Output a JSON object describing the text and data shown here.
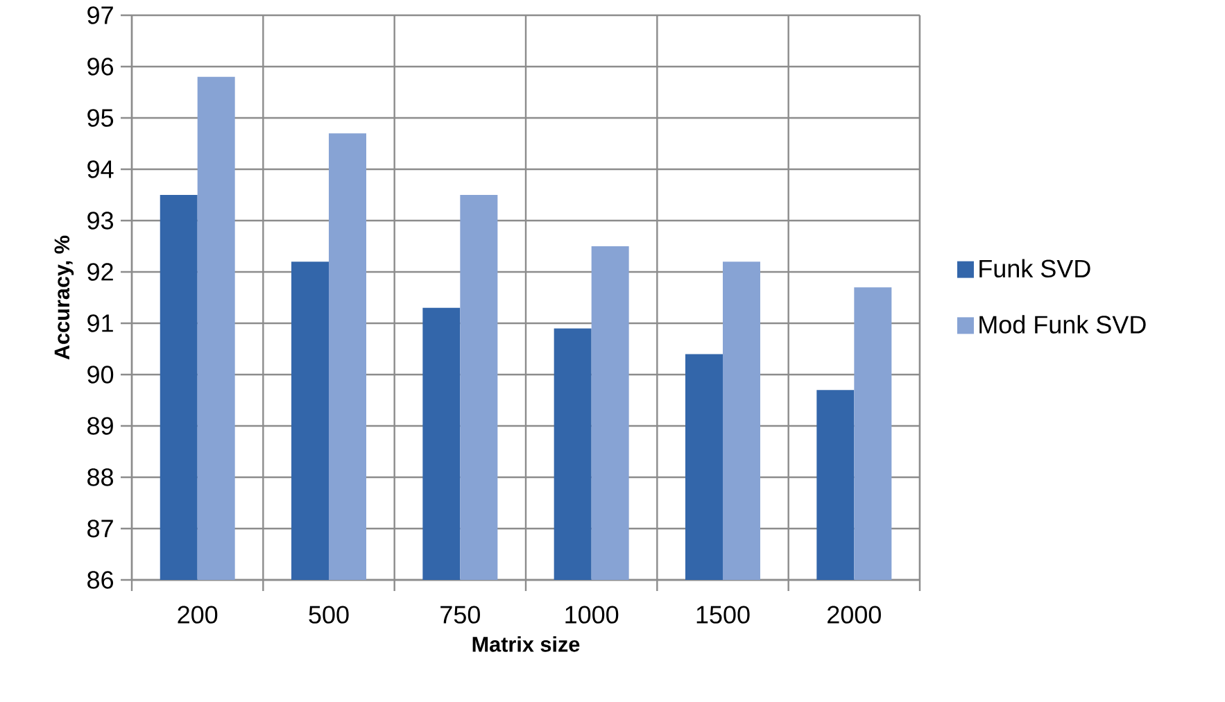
{
  "chart_data": {
    "type": "bar",
    "xlabel": "Matrix size",
    "ylabel": "Accuracy, %",
    "categories": [
      "200",
      "500",
      "750",
      "1000",
      "1500",
      "2000"
    ],
    "series": [
      {
        "name": "Funk SVD",
        "color": "#3366aa",
        "values": [
          93.5,
          92.2,
          91.3,
          90.9,
          90.4,
          89.7
        ]
      },
      {
        "name": "Mod Funk SVD",
        "color": "#87a3d4",
        "values": [
          95.8,
          94.7,
          93.5,
          92.5,
          92.2,
          91.7
        ]
      }
    ],
    "ylim": [
      86,
      97
    ],
    "yticks": [
      86,
      87,
      88,
      89,
      90,
      91,
      92,
      93,
      94,
      95,
      96,
      97
    ],
    "grid": true,
    "legend": "right"
  }
}
